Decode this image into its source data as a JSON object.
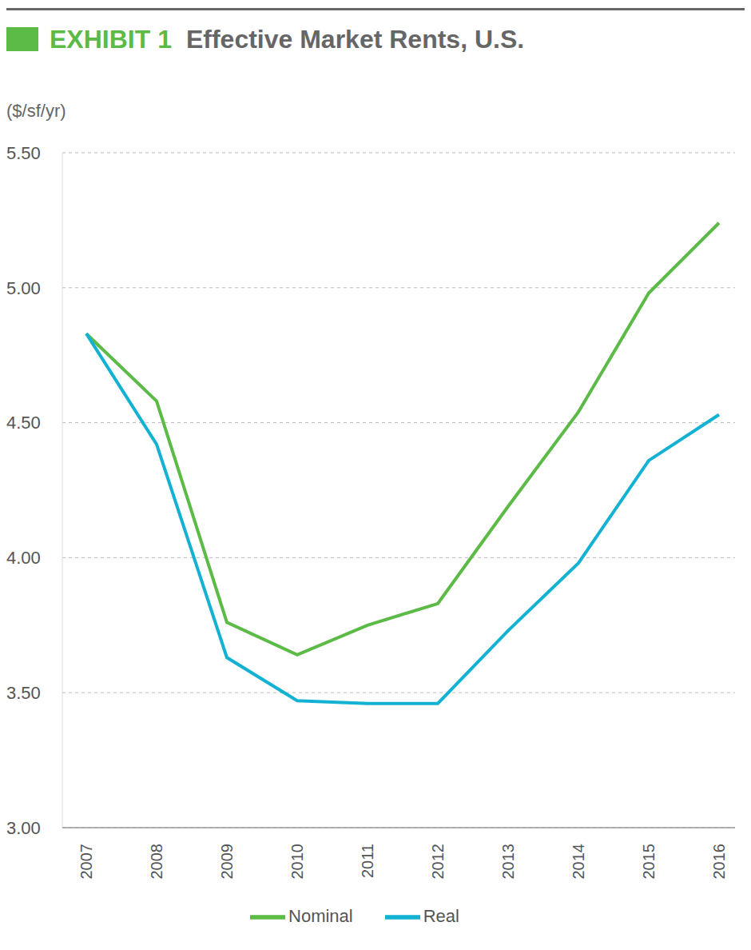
{
  "chart_data": {
    "type": "line",
    "exhibit": "EXHIBIT 1",
    "title": "Effective Market Rents, U.S.",
    "y_label": "($/sf/yr)",
    "categories": [
      "2007",
      "2008",
      "2009",
      "2010",
      "2011",
      "2012",
      "2013",
      "2014",
      "2015",
      "2016"
    ],
    "series": [
      {
        "name": "Nominal",
        "color": "#5cba47",
        "values": [
          4.83,
          4.58,
          3.76,
          3.64,
          3.75,
          3.83,
          4.19,
          4.54,
          4.98,
          5.24
        ]
      },
      {
        "name": "Real",
        "color": "#13b2d3",
        "values": [
          4.83,
          4.42,
          3.63,
          3.47,
          3.46,
          3.46,
          3.73,
          3.98,
          4.36,
          4.53
        ]
      }
    ],
    "ylim": [
      3,
      5.5
    ],
    "yticks": [
      {
        "value": 3,
        "label": "3.00"
      },
      {
        "value": 3.5,
        "label": "3.50"
      },
      {
        "value": 4,
        "label": "4.00"
      },
      {
        "value": 4.5,
        "label": "4.50"
      },
      {
        "value": 5,
        "label": "5.00"
      },
      {
        "value": 5.5,
        "label": "5.50"
      }
    ],
    "grid": true,
    "legend": "bottom"
  }
}
